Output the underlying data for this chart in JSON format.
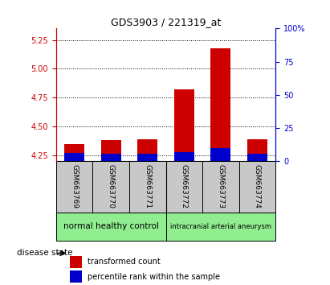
{
  "title": "GDS3903 / 221319_at",
  "samples": [
    "GSM663769",
    "GSM663770",
    "GSM663771",
    "GSM663772",
    "GSM663773",
    "GSM663774"
  ],
  "red_values": [
    4.35,
    4.385,
    4.39,
    4.82,
    5.18,
    4.39
  ],
  "blue_values": [
    4.27,
    4.265,
    4.265,
    4.275,
    4.315,
    4.265
  ],
  "baseline": 4.2,
  "ylim_left": [
    4.2,
    5.35
  ],
  "ylim_right": [
    0,
    100
  ],
  "yticks_left": [
    4.25,
    4.5,
    4.75,
    5.0,
    5.25
  ],
  "yticks_right": [
    0,
    25,
    50,
    75,
    100
  ],
  "ytick_labels_right": [
    "0",
    "25",
    "50",
    "75",
    "100%"
  ],
  "group1_label": "normal healthy control",
  "group2_label": "intracranial arterial aneurysm",
  "group_color": "#90EE90",
  "bar_bg_color": "#C8C8C8",
  "red_color": "#CC0000",
  "blue_color": "#0000CC",
  "axis_left_color": "#CC0000",
  "axis_right_color": "#0000CC",
  "legend_red": "transformed count",
  "legend_blue": "percentile rank within the sample",
  "disease_state_label": "disease state",
  "bar_width": 0.55
}
